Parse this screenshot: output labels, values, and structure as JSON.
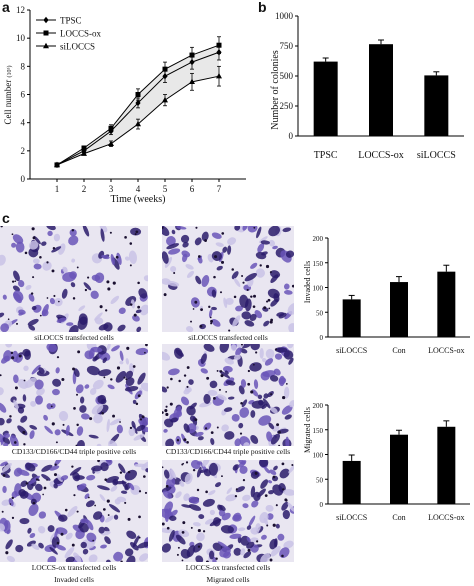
{
  "panels": {
    "a": "a",
    "b": "b",
    "c": "c"
  },
  "colors": {
    "stain_dark": "#2a1b6b",
    "stain_mid": "#6a55b8",
    "stain_light": "#c9c2e6",
    "bar": "#000000"
  },
  "chart_data": [
    {
      "id": "a",
      "type": "line",
      "title": "",
      "xlabel": "Time (weeks)",
      "ylabel": "Cell number (10^5)",
      "ylabel_main": "Cell number",
      "ylabel_unit": "(10⁵)",
      "x": [
        1,
        2,
        3,
        4,
        5,
        6,
        7
      ],
      "xlim": [
        0,
        8
      ],
      "ylim": [
        0,
        12
      ],
      "xticks": [
        "1",
        "2",
        "3",
        "4",
        "5",
        "6",
        "7"
      ],
      "yticks": [
        "0",
        "2",
        "4",
        "6",
        "8",
        "10",
        "12"
      ],
      "legend_position": "top-left",
      "series": [
        {
          "name": "TPSC",
          "marker": "diamond",
          "values": [
            1,
            2.0,
            3.4,
            5.4,
            7.3,
            8.3,
            9.0
          ],
          "errors": [
            0.05,
            0.15,
            0.25,
            0.35,
            0.45,
            0.5,
            0.55
          ]
        },
        {
          "name": "LOCCS-ox",
          "marker": "square",
          "values": [
            1,
            2.2,
            3.6,
            6.0,
            7.8,
            8.8,
            9.5
          ],
          "errors": [
            0.05,
            0.15,
            0.25,
            0.4,
            0.5,
            0.55,
            0.6
          ]
        },
        {
          "name": "siLOCCS",
          "marker": "triangle",
          "values": [
            1,
            1.8,
            2.5,
            3.9,
            5.6,
            6.9,
            7.3
          ],
          "errors": [
            0.05,
            0.1,
            0.2,
            0.35,
            0.4,
            0.6,
            0.7
          ]
        }
      ]
    },
    {
      "id": "b",
      "type": "bar",
      "title": "",
      "xlabel": "",
      "ylabel": "Number of colonies",
      "categories": [
        "TPSC",
        "LOCCS-ox",
        "siLOCCS"
      ],
      "values": [
        620,
        765,
        505
      ],
      "errors": [
        30,
        35,
        30
      ],
      "ylim": [
        0,
        1000
      ],
      "yticks": [
        "0",
        "250",
        "500",
        "750",
        "1000"
      ]
    },
    {
      "id": "c_invaded",
      "type": "bar",
      "title": "",
      "xlabel": "",
      "ylabel": "Invaded cells",
      "categories": [
        "siLOCCS",
        "Con",
        "LOCCS-ox"
      ],
      "values": [
        76,
        111,
        132
      ],
      "errors": [
        8,
        11,
        13
      ],
      "ylim": [
        0,
        200
      ],
      "yticks": [
        "0",
        "50",
        "100",
        "150",
        "200"
      ]
    },
    {
      "id": "c_migrated",
      "type": "bar",
      "title": "",
      "xlabel": "",
      "ylabel": "Migrated cells",
      "categories": [
        "siLOCCS",
        "Con",
        "LOCCS-ox"
      ],
      "values": [
        87,
        140,
        156
      ],
      "errors": [
        12,
        9,
        12
      ],
      "ylim": [
        0,
        200
      ],
      "yticks": [
        "0",
        "50",
        "100",
        "150",
        "200"
      ]
    }
  ],
  "micrographs": {
    "captions": [
      "siLOCCS transfected cells",
      "siLOCCS transfected cells",
      "CD133/CD166/CD44 triple positive cells",
      "CD133/CD166/CD44 triple positive cells",
      "LOCCS-ox transfected cells",
      "LOCCS-ox transfected cells"
    ],
    "column_labels": [
      "Invaded cells",
      "Migrated cells"
    ]
  }
}
